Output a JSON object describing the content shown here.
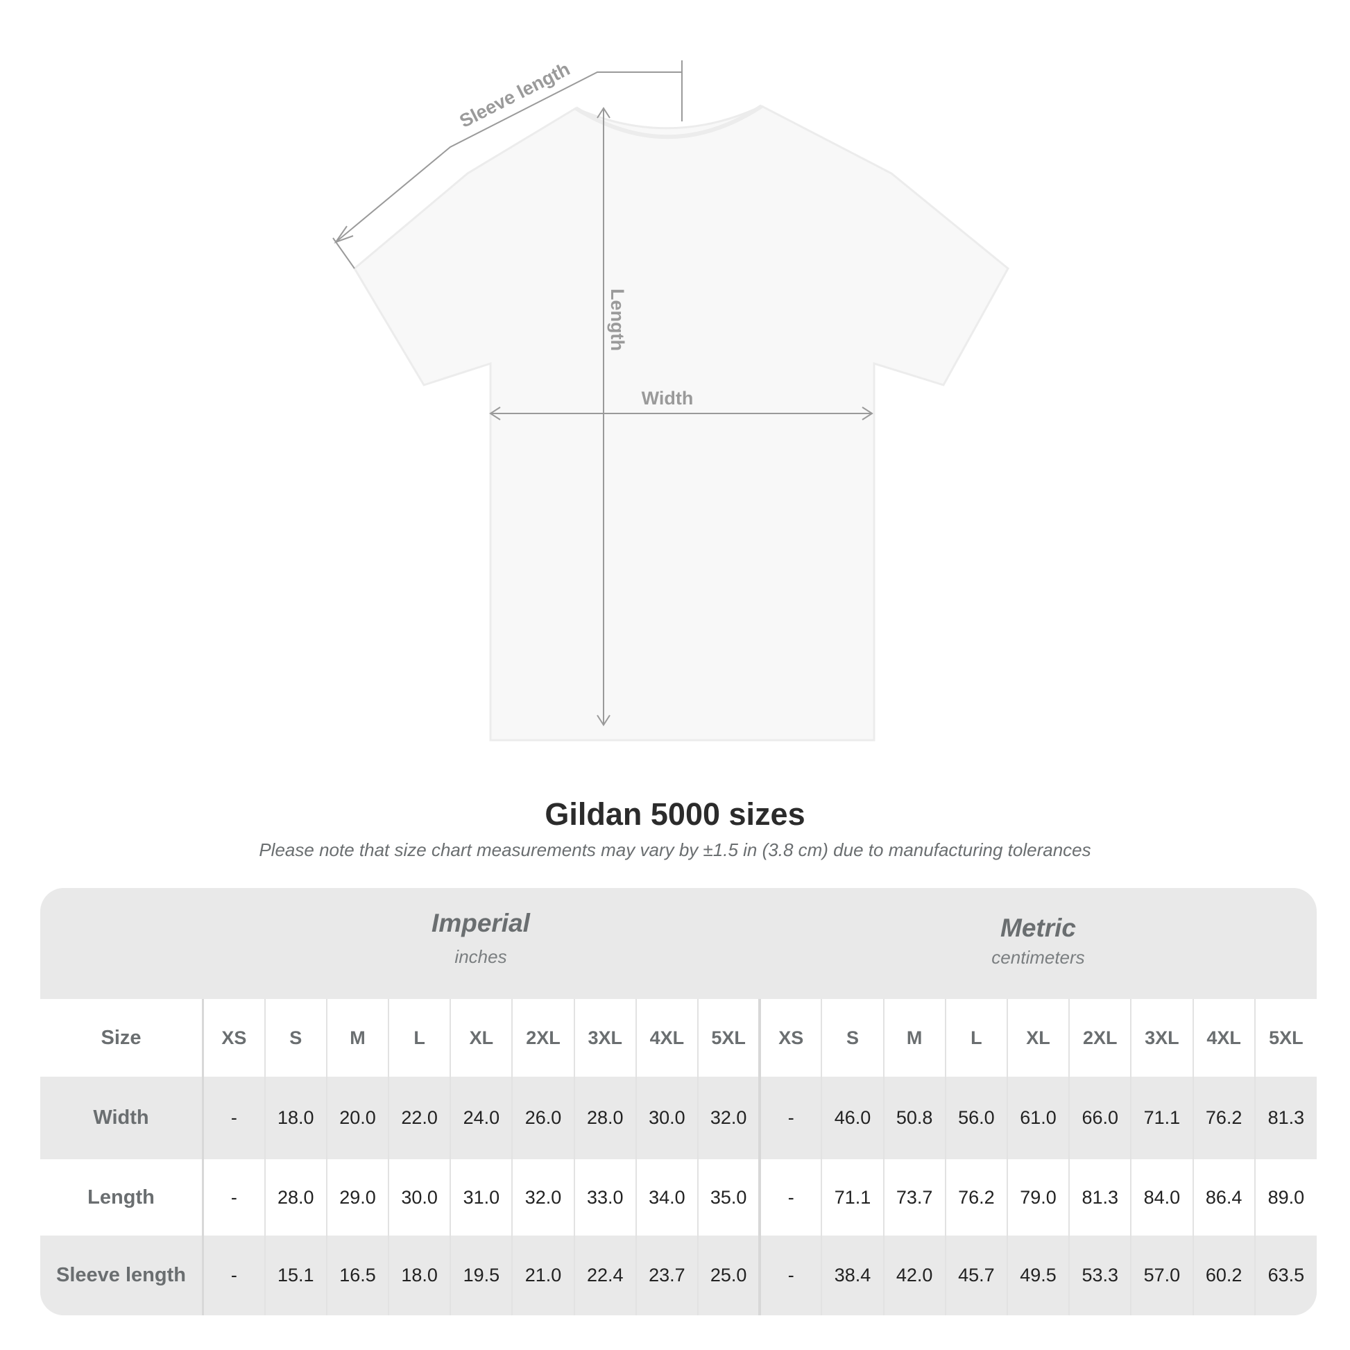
{
  "diagram": {
    "labels": {
      "sleeve_length": "Sleeve length",
      "length": "Length",
      "width": "Width"
    },
    "colors": {
      "lines": "#9a9a9a",
      "shirt": "#f8f8f8"
    }
  },
  "title": "Gildan 5000 sizes",
  "subtitle": "Please note that size chart measurements may vary by ±1.5 in (3.8 cm) due to manufacturing tolerances",
  "table": {
    "imperial": {
      "name": "Imperial",
      "unit": "inches"
    },
    "metric": {
      "name": "Metric",
      "unit": "centimeters"
    },
    "size_label": "Size",
    "sizes": [
      "XS",
      "S",
      "M",
      "L",
      "XL",
      "2XL",
      "3XL",
      "4XL",
      "5XL"
    ],
    "rows": [
      {
        "label": "Width",
        "imperial": [
          "-",
          "18.0",
          "20.0",
          "22.0",
          "24.0",
          "26.0",
          "28.0",
          "30.0",
          "32.0"
        ],
        "metric": [
          "-",
          "46.0",
          "50.8",
          "56.0",
          "61.0",
          "66.0",
          "71.1",
          "76.2",
          "81.3"
        ]
      },
      {
        "label": "Length",
        "imperial": [
          "-",
          "28.0",
          "29.0",
          "30.0",
          "31.0",
          "32.0",
          "33.0",
          "34.0",
          "35.0"
        ],
        "metric": [
          "-",
          "71.1",
          "73.7",
          "76.2",
          "79.0",
          "81.3",
          "84.0",
          "86.4",
          "89.0"
        ]
      },
      {
        "label": "Sleeve length",
        "imperial": [
          "-",
          "15.1",
          "16.5",
          "18.0",
          "19.5",
          "21.0",
          "22.4",
          "23.7",
          "25.0"
        ],
        "metric": [
          "-",
          "38.4",
          "42.0",
          "45.7",
          "49.5",
          "53.3",
          "57.0",
          "60.2",
          "63.5"
        ]
      }
    ]
  }
}
